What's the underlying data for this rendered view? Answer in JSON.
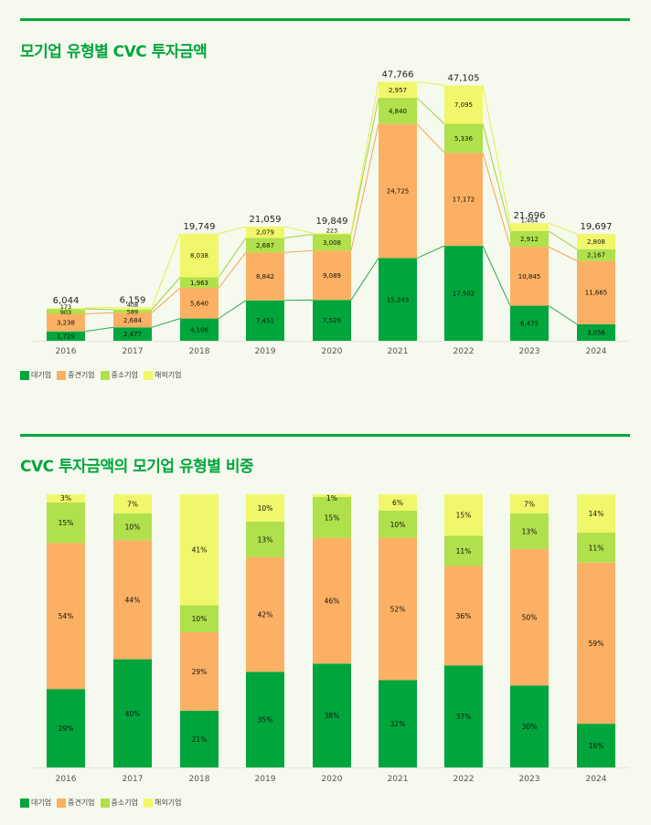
{
  "colors": {
    "accent": "#00a63c",
    "large": "#00a63c",
    "midsize": "#fbb063",
    "sme": "#b0e04b",
    "foreign": "#f1f76a"
  },
  "legend": [
    {
      "label": "대기업",
      "color": "#00a63c"
    },
    {
      "label": "중견기업",
      "color": "#fbb063"
    },
    {
      "label": "중소기업",
      "color": "#b0e04b"
    },
    {
      "label": "해외기업",
      "color": "#f1f76a"
    }
  ],
  "chart_data": [
    {
      "type": "bar",
      "stacked": true,
      "title": "모기업 유형별 CVC 투자금액",
      "xlabel": "",
      "ylabel": "",
      "categories": [
        "2016",
        "2017",
        "2018",
        "2019",
        "2020",
        "2021",
        "2022",
        "2023",
        "2024"
      ],
      "series": [
        {
          "name": "대기업",
          "values": [
            1729,
            2477,
            4106,
            7451,
            7529,
            15243,
            17502,
            6475,
            3056
          ]
        },
        {
          "name": "중견기업",
          "values": [
            3238,
            2684,
            5640,
            8842,
            9089,
            24725,
            17172,
            10845,
            11665
          ]
        },
        {
          "name": "중소기업",
          "values": [
            903,
            589,
            1963,
            2687,
            3008,
            4840,
            5336,
            2912,
            2167
          ]
        },
        {
          "name": "해외기업",
          "values": [
            173,
            408,
            8038,
            2079,
            223,
            2957,
            7095,
            1464,
            2808
          ]
        }
      ],
      "value_labels": [
        [
          "1,729",
          "2,477",
          "4,106",
          "7,451",
          "7,529",
          "15,243",
          "17,502",
          "6,475",
          "3,056"
        ],
        [
          "3,238",
          "2,684",
          "5,640",
          "8,842",
          "9,089",
          "24,725",
          "17,172",
          "10,845",
          "11,665"
        ],
        [
          "903",
          "589",
          "1,963",
          "2,687",
          "3,008",
          "4,840",
          "5,336",
          "2,912",
          "2,167"
        ],
        [
          "173",
          "408",
          "8,038",
          "2,079",
          "223",
          "2,957",
          "7,095",
          "1,464",
          "2,808"
        ]
      ],
      "totals": [
        "6,044",
        "6,159",
        "19,749",
        "21,059",
        "19,849",
        "47,766",
        "47,105",
        "21,696",
        "19,697"
      ],
      "ylim": [
        0,
        50000
      ],
      "grid": false,
      "connector_lines": true,
      "legend_position": "bottom-left"
    },
    {
      "type": "bar",
      "stacked": true,
      "normalized": true,
      "title": "CVC 투자금액의 모기업 유형별 비중",
      "xlabel": "",
      "ylabel": "",
      "categories": [
        "2016",
        "2017",
        "2018",
        "2019",
        "2020",
        "2021",
        "2022",
        "2023",
        "2024"
      ],
      "series": [
        {
          "name": "대기업",
          "values": [
            29,
            40,
            21,
            35,
            38,
            32,
            37,
            30,
            16
          ]
        },
        {
          "name": "중견기업",
          "values": [
            54,
            44,
            29,
            42,
            46,
            52,
            36,
            50,
            59
          ]
        },
        {
          "name": "중소기업",
          "values": [
            15,
            10,
            10,
            13,
            15,
            10,
            11,
            13,
            11
          ]
        },
        {
          "name": "해외기업",
          "values": [
            3,
            7,
            41,
            10,
            1,
            6,
            15,
            7,
            14
          ]
        }
      ],
      "value_suffix": "%",
      "ylim": [
        0,
        100
      ],
      "grid": false,
      "legend_position": "bottom-left"
    }
  ]
}
